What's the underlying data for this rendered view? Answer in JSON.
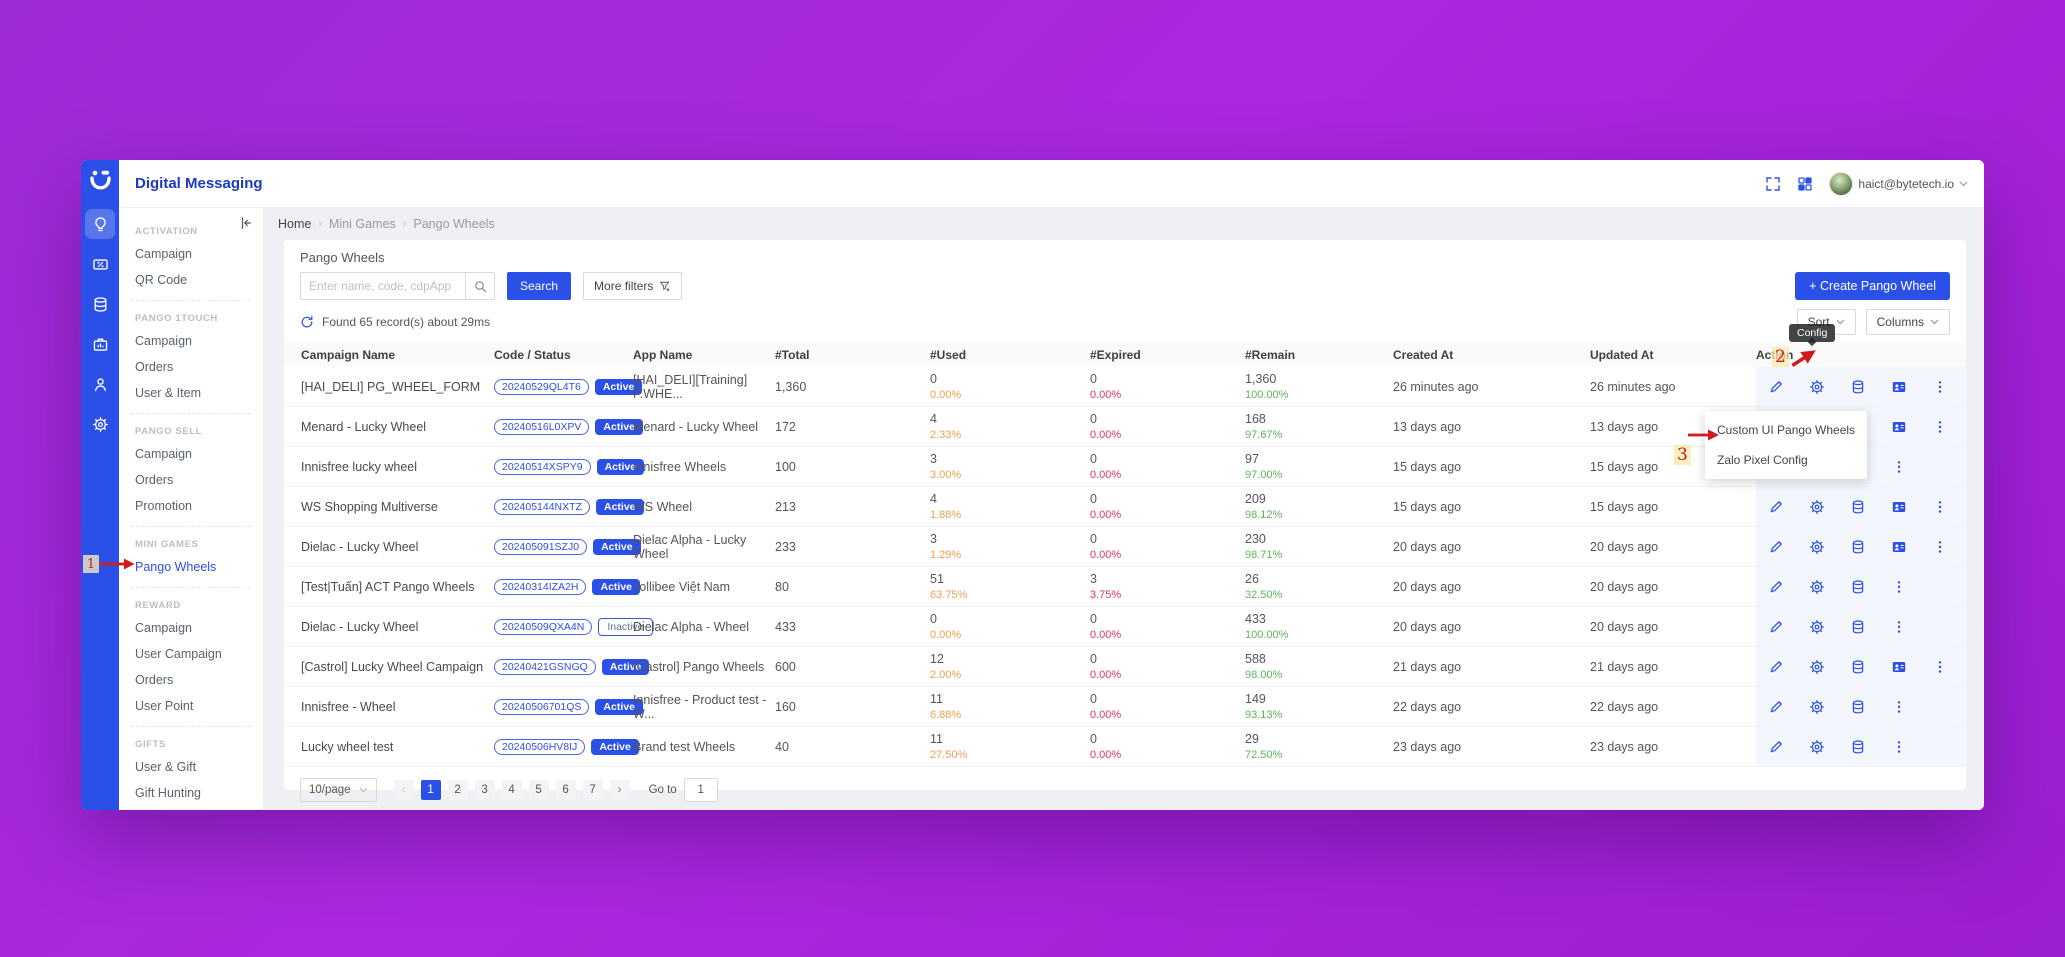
{
  "app": {
    "title": "Digital Messaging",
    "user_email": "haict@bytetech.io"
  },
  "rail": {
    "icons": [
      {
        "icon": "lightbulb",
        "active": true
      },
      {
        "icon": "ticket-percent",
        "active": false
      },
      {
        "icon": "database",
        "active": false
      },
      {
        "icon": "briefcase",
        "active": false
      },
      {
        "icon": "user",
        "active": false
      },
      {
        "icon": "gear",
        "active": false
      }
    ]
  },
  "sidebar": {
    "sections": [
      {
        "title": "ACTIVATION",
        "items": [
          {
            "label": "Campaign"
          },
          {
            "label": "QR Code"
          }
        ]
      },
      {
        "title": "PANGO 1TOUCH",
        "items": [
          {
            "label": "Campaign"
          },
          {
            "label": "Orders"
          },
          {
            "label": "User & Item"
          }
        ]
      },
      {
        "title": "PANGO SELL",
        "items": [
          {
            "label": "Campaign"
          },
          {
            "label": "Orders"
          },
          {
            "label": "Promotion"
          }
        ]
      },
      {
        "title": "MINI GAMES",
        "items": [
          {
            "label": "Pango Wheels",
            "active": true
          }
        ]
      },
      {
        "title": "REWARD",
        "items": [
          {
            "label": "Campaign"
          },
          {
            "label": "User Campaign"
          },
          {
            "label": "Orders"
          },
          {
            "label": "User Point"
          }
        ]
      },
      {
        "title": "GIFTS",
        "items": [
          {
            "label": "User & Gift"
          },
          {
            "label": "Gift Hunting"
          }
        ]
      }
    ]
  },
  "breadcrumb": {
    "items": [
      "Home",
      "Mini Games",
      "Pango Wheels"
    ]
  },
  "page": {
    "title": "Pango Wheels",
    "search_placeholder": "Enter name, code, cdpApp",
    "search_label": "Search",
    "more_filters_label": "More filters",
    "results_text": "Found 65 record(s) about 29ms",
    "create_label": "+ Create Pango Wheel",
    "sort_label": "Sort",
    "columns_label": "Columns"
  },
  "table": {
    "headers": [
      "Campaign Name",
      "Code / Status",
      "App Name",
      "#Total",
      "#Used",
      "#Expired",
      "#Remain",
      "Created At",
      "Updated At",
      "Action"
    ],
    "rows": [
      {
        "campaign": "[HAI_DELI] PG_WHEEL_FORM",
        "code": "20240529QL4T6",
        "status": "Active",
        "app": "[HAI_DELI][Training] P.WHE...",
        "total": "1,360",
        "used": "0",
        "used_pct": "0.00%",
        "expired": "0",
        "expired_pct": "0.00%",
        "remain": "1,360",
        "remain_pct": "100.00%",
        "created": "26 minutes ago",
        "updated": "26 minutes ago",
        "actions": [
          "edit",
          "config",
          "data",
          "contact",
          "more"
        ]
      },
      {
        "campaign": "Menard - Lucky Wheel",
        "code": "20240516L0XPV",
        "status": "Active",
        "app": "Menard - Lucky Wheel",
        "total": "172",
        "used": "4",
        "used_pct": "2.33%",
        "expired": "0",
        "expired_pct": "0.00%",
        "remain": "168",
        "remain_pct": "97.67%",
        "created": "13 days ago",
        "updated": "13 days ago",
        "actions": [
          "edit",
          "config",
          "data",
          "contact",
          "more"
        ]
      },
      {
        "campaign": "Innisfree lucky wheel",
        "code": "20240514XSPY9",
        "status": "Active",
        "app": "Innisfree Wheels",
        "total": "100",
        "used": "3",
        "used_pct": "3.00%",
        "expired": "0",
        "expired_pct": "0.00%",
        "remain": "97",
        "remain_pct": "97.00%",
        "created": "15 days ago",
        "updated": "15 days ago",
        "actions": [
          "edit",
          "config",
          "data",
          "more"
        ]
      },
      {
        "campaign": "WS Shopping Multiverse",
        "code": "202405144NXTZ",
        "status": "Active",
        "app": "WS Wheel",
        "total": "213",
        "used": "4",
        "used_pct": "1.88%",
        "expired": "0",
        "expired_pct": "0.00%",
        "remain": "209",
        "remain_pct": "98.12%",
        "created": "15 days ago",
        "updated": "15 days ago",
        "actions": [
          "edit",
          "config",
          "data",
          "contact",
          "more"
        ]
      },
      {
        "campaign": "Dielac - Lucky Wheel",
        "code": "202405091SZJ0",
        "status": "Active",
        "app": "Dielac Alpha - Lucky Wheel",
        "total": "233",
        "used": "3",
        "used_pct": "1.29%",
        "expired": "0",
        "expired_pct": "0.00%",
        "remain": "230",
        "remain_pct": "98.71%",
        "created": "20 days ago",
        "updated": "20 days ago",
        "actions": [
          "edit",
          "config",
          "data",
          "contact",
          "more"
        ]
      },
      {
        "campaign": "[Test|Tuấn] ACT Pango Wheels",
        "code": "20240314IZA2H",
        "status": "Active",
        "app": "Jollibee Việt Nam",
        "total": "80",
        "used": "51",
        "used_pct": "63.75%",
        "expired": "3",
        "expired_pct": "3.75%",
        "remain": "26",
        "remain_pct": "32.50%",
        "created": "20 days ago",
        "updated": "20 days ago",
        "actions": [
          "edit",
          "config",
          "data",
          "more"
        ]
      },
      {
        "campaign": "Dielac - Lucky Wheel",
        "code": "20240509QXA4N",
        "status": "Inactive",
        "app": "Dielac Alpha - Wheel",
        "total": "433",
        "used": "0",
        "used_pct": "0.00%",
        "expired": "0",
        "expired_pct": "0.00%",
        "remain": "433",
        "remain_pct": "100.00%",
        "created": "20 days ago",
        "updated": "20 days ago",
        "actions": [
          "edit",
          "config",
          "data",
          "more"
        ]
      },
      {
        "campaign": "[Castrol] Lucky Wheel Campaign",
        "code": "20240421GSNGQ",
        "status": "Active",
        "app": "[Castrol] Pango Wheels",
        "total": "600",
        "used": "12",
        "used_pct": "2.00%",
        "expired": "0",
        "expired_pct": "0.00%",
        "remain": "588",
        "remain_pct": "98.00%",
        "created": "21 days ago",
        "updated": "21 days ago",
        "actions": [
          "edit",
          "config",
          "data",
          "contact",
          "more"
        ]
      },
      {
        "campaign": "Innisfree - Wheel",
        "code": "20240506701QS",
        "status": "Active",
        "app": "Innisfree - Product test - W...",
        "total": "160",
        "used": "11",
        "used_pct": "6.88%",
        "expired": "0",
        "expired_pct": "0.00%",
        "remain": "149",
        "remain_pct": "93.13%",
        "created": "22 days ago",
        "updated": "22 days ago",
        "actions": [
          "edit",
          "config",
          "data",
          "more"
        ]
      },
      {
        "campaign": "Lucky wheel test",
        "code": "20240506HV8IJ",
        "status": "Active",
        "app": "Brand test Wheels",
        "total": "40",
        "used": "11",
        "used_pct": "27.50%",
        "expired": "0",
        "expired_pct": "0.00%",
        "remain": "29",
        "remain_pct": "72.50%",
        "created": "23 days ago",
        "updated": "23 days ago",
        "actions": [
          "edit",
          "config",
          "data",
          "more"
        ]
      }
    ]
  },
  "pagination": {
    "size_label": "10/page",
    "pages": [
      "1",
      "2",
      "3",
      "4",
      "5",
      "6",
      "7"
    ],
    "active_page": "1",
    "goto_label": "Go to",
    "goto_value": "1"
  },
  "context_menu": {
    "items": [
      "Custom UI Pango Wheels",
      "Zalo Pixel Config"
    ]
  },
  "tooltip": {
    "text": "Config"
  },
  "annotations": {
    "step1": "1",
    "step2": "2",
    "step3": "3"
  },
  "colors": {
    "primary": "#2b50e7",
    "title_blue": "#1d39c4",
    "used_pct": "#ef9f53",
    "expired_pct": "#e5365a",
    "remain_pct": "#5fb65a",
    "background_purple": "#a829dd",
    "action_col_bg": "#f3f6fc",
    "annotation_red": "#d11a1a"
  }
}
